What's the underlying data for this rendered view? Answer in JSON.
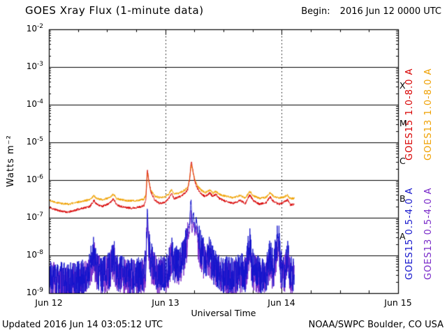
{
  "header": {
    "title": "GOES Xray Flux (1-minute data)",
    "begin_label": "Begin:",
    "begin_value": "2016 Jun 12 0000 UTC"
  },
  "axes": {
    "y_label": "Watts m⁻²",
    "x_label": "Universal Time"
  },
  "footer": {
    "updated": "Updated 2016 Jun 14 03:05:12 UTC",
    "credit": "NOAA/SWPC Boulder, CO USA"
  },
  "colors": {
    "background": "#ffffff",
    "frame": "#000000",
    "goes15_long": "#d80000",
    "goes13_long": "#efa000",
    "goes15_short": "#1414cc",
    "goes13_short": "#7828c8"
  },
  "chart_data": {
    "type": "line",
    "title": "GOES Xray Flux (1-minute data)",
    "xlabel": "Universal Time",
    "ylabel": "Watts m⁻²",
    "x_unit_hours_since": "2016 Jun 12 0000 UTC",
    "xlim_hours": [
      0,
      72
    ],
    "x_ticks": [
      {
        "hour": 0,
        "label": "Jun 12"
      },
      {
        "hour": 24,
        "label": "Jun 13"
      },
      {
        "hour": 48,
        "label": "Jun 14"
      },
      {
        "hour": 72,
        "label": "Jun 15"
      }
    ],
    "x_minor_tick_hours": 6,
    "y_scale": "log",
    "y_exp_top": -2,
    "y_exp_bottom": -9,
    "y_tick_exponents": [
      -2,
      -3,
      -4,
      -5,
      -6,
      -7,
      -8,
      -9
    ],
    "grid": {
      "h_lines_exponents": [
        -3,
        -4,
        -5,
        -6,
        -7,
        -8
      ],
      "v_dotted_hours": [
        24,
        48
      ]
    },
    "flare_classes": [
      {
        "label": "X",
        "exp_center": -3.5
      },
      {
        "label": "M",
        "exp_center": -4.5
      },
      {
        "label": "C",
        "exp_center": -5.5
      },
      {
        "label": "B",
        "exp_center": -6.5
      },
      {
        "label": "A",
        "exp_center": -7.5
      }
    ],
    "data_end_hour": 50.6,
    "legend_position": "right-rotated",
    "series": [
      {
        "name": "GOES15 1.0-8.0 A",
        "color": "#d80000",
        "band": "long",
        "seed": 11,
        "noise_decades": 0.03,
        "keypoints": [
          [
            0,
            1.9e-07
          ],
          [
            1,
            1.7e-07
          ],
          [
            2.5,
            1.5e-07
          ],
          [
            4,
            1.4e-07
          ],
          [
            5.5,
            1.6e-07
          ],
          [
            7,
            1.8e-07
          ],
          [
            8.5,
            2e-07
          ],
          [
            9.3,
            2.9e-07
          ],
          [
            9.8,
            2.3e-07
          ],
          [
            11,
            2e-07
          ],
          [
            12.5,
            2.4e-07
          ],
          [
            13.3,
            3.2e-07
          ],
          [
            14,
            2.2e-07
          ],
          [
            15.5,
            1.9e-07
          ],
          [
            17,
            1.8e-07
          ],
          [
            18.5,
            1.9e-07
          ],
          [
            19.6,
            2.1e-07
          ],
          [
            20.0,
            3e-07
          ],
          [
            20.3,
            2e-06
          ],
          [
            20.55,
            1.1e-06
          ],
          [
            21.0,
            5e-07
          ],
          [
            21.8,
            3e-07
          ],
          [
            22.8,
            2.4e-07
          ],
          [
            24.0,
            2.6e-07
          ],
          [
            24.8,
            3.4e-07
          ],
          [
            25.3,
            4.6e-07
          ],
          [
            25.8,
            3.2e-07
          ],
          [
            26.5,
            3.4e-07
          ],
          [
            27.3,
            3.8e-07
          ],
          [
            28.0,
            4.4e-07
          ],
          [
            28.6,
            5.5e-07
          ],
          [
            29.0,
            1e-06
          ],
          [
            29.35,
            3.2e-06
          ],
          [
            29.6,
            2.2e-06
          ],
          [
            30.0,
            1e-06
          ],
          [
            30.6,
            6e-07
          ],
          [
            31.4,
            4.4e-07
          ],
          [
            32.2,
            3.6e-07
          ],
          [
            33.2,
            4.6e-07
          ],
          [
            33.8,
            3.6e-07
          ],
          [
            34.4,
            4.2e-07
          ],
          [
            35.2,
            3.2e-07
          ],
          [
            36.5,
            2.7e-07
          ],
          [
            38,
            2.4e-07
          ],
          [
            39.5,
            2.9e-07
          ],
          [
            40.5,
            2.4e-07
          ],
          [
            41.4,
            4e-07
          ],
          [
            42.2,
            2.8e-07
          ],
          [
            43.5,
            2.3e-07
          ],
          [
            44.8,
            2.5e-07
          ],
          [
            45.6,
            3.6e-07
          ],
          [
            46.4,
            2.6e-07
          ],
          [
            47.5,
            2.3e-07
          ],
          [
            48.5,
            2.6e-07
          ],
          [
            49.2,
            3e-07
          ],
          [
            49.8,
            2.2e-07
          ],
          [
            50.6,
            2.3e-07
          ]
        ]
      },
      {
        "name": "GOES13 1.0-8.0 A",
        "color": "#efa000",
        "band": "long",
        "seed": 22,
        "noise_decades": 0.03,
        "keypoints": [
          [
            0,
            2.9e-07
          ],
          [
            1,
            2.7e-07
          ],
          [
            2.5,
            2.4e-07
          ],
          [
            4,
            2.3e-07
          ],
          [
            5.5,
            2.5e-07
          ],
          [
            7,
            2.8e-07
          ],
          [
            8.5,
            3e-07
          ],
          [
            9.3,
            3.9e-07
          ],
          [
            9.8,
            3.3e-07
          ],
          [
            11,
            3e-07
          ],
          [
            12.5,
            3.4e-07
          ],
          [
            13.3,
            4.2e-07
          ],
          [
            14,
            3.2e-07
          ],
          [
            15.5,
            2.9e-07
          ],
          [
            17,
            2.8e-07
          ],
          [
            18.5,
            2.9e-07
          ],
          [
            19.6,
            3.1e-07
          ],
          [
            20.0,
            4e-07
          ],
          [
            20.3,
            1.6e-06
          ],
          [
            20.55,
            1e-06
          ],
          [
            21.0,
            5.5e-07
          ],
          [
            21.8,
            3.8e-07
          ],
          [
            22.8,
            3.4e-07
          ],
          [
            24.0,
            3.6e-07
          ],
          [
            24.8,
            4.4e-07
          ],
          [
            25.3,
            5.6e-07
          ],
          [
            25.8,
            4.2e-07
          ],
          [
            26.5,
            4.4e-07
          ],
          [
            27.3,
            4.8e-07
          ],
          [
            28.0,
            5.4e-07
          ],
          [
            28.6,
            6.5e-07
          ],
          [
            29.0,
            1.1e-06
          ],
          [
            29.35,
            2.6e-06
          ],
          [
            29.6,
            1.9e-06
          ],
          [
            30.0,
            1.1e-06
          ],
          [
            30.6,
            7e-07
          ],
          [
            31.4,
            5.4e-07
          ],
          [
            32.2,
            4.6e-07
          ],
          [
            33.2,
            5.4e-07
          ],
          [
            33.8,
            4.6e-07
          ],
          [
            34.4,
            5e-07
          ],
          [
            35.2,
            4.2e-07
          ],
          [
            36.5,
            3.7e-07
          ],
          [
            38,
            3.4e-07
          ],
          [
            39.5,
            3.9e-07
          ],
          [
            40.5,
            3.4e-07
          ],
          [
            41.4,
            5e-07
          ],
          [
            42.2,
            3.8e-07
          ],
          [
            43.5,
            3.3e-07
          ],
          [
            44.8,
            3.5e-07
          ],
          [
            45.6,
            4.6e-07
          ],
          [
            46.4,
            3.6e-07
          ],
          [
            47.5,
            3.3e-07
          ],
          [
            48.5,
            3.6e-07
          ],
          [
            49.2,
            4e-07
          ],
          [
            49.8,
            3.2e-07
          ],
          [
            50.6,
            3.3e-07
          ]
        ]
      },
      {
        "name": "GOES15 0.5-4.0 A",
        "color": "#1414cc",
        "band": "short",
        "seed": 33,
        "noise_decades": 0.5,
        "noise_decades_high": 0.1,
        "noise_threshold": 2.5e-08,
        "keypoints": [
          [
            0,
            2.5e-09
          ],
          [
            2,
            2.2e-09
          ],
          [
            4,
            2e-09
          ],
          [
            6,
            2.3e-09
          ],
          [
            8,
            2.6e-09
          ],
          [
            9.3,
            1.6e-08
          ],
          [
            9.8,
            4e-09
          ],
          [
            11,
            3e-09
          ],
          [
            12.5,
            4e-09
          ],
          [
            13.3,
            1.1e-08
          ],
          [
            14,
            3.5e-09
          ],
          [
            16,
            2.8e-09
          ],
          [
            18,
            2.8e-09
          ],
          [
            19.7,
            3.2e-09
          ],
          [
            20.05,
            8e-09
          ],
          [
            20.3,
            1.9e-07
          ],
          [
            20.5,
            3e-08
          ],
          [
            21.0,
            8e-09
          ],
          [
            21.8,
            4e-09
          ],
          [
            23,
            3e-09
          ],
          [
            24.5,
            4e-09
          ],
          [
            25.3,
            1.1e-08
          ],
          [
            25.8,
            5e-09
          ],
          [
            26.5,
            6e-09
          ],
          [
            27.3,
            8e-09
          ],
          [
            28.0,
            1.4e-08
          ],
          [
            28.6,
            4e-08
          ],
          [
            29.0,
            8e-08
          ],
          [
            29.3,
            2.9e-07
          ],
          [
            29.5,
            7e-08
          ],
          [
            29.8,
            1.3e-07
          ],
          [
            30.1,
            5e-08
          ],
          [
            30.4,
            9e-08
          ],
          [
            30.8,
            3e-08
          ],
          [
            31.4,
            1.4e-08
          ],
          [
            32.2,
            8e-09
          ],
          [
            33.2,
            1.2e-08
          ],
          [
            34,
            5e-09
          ],
          [
            35.2,
            3.5e-09
          ],
          [
            36.5,
            3e-09
          ],
          [
            38,
            2.8e-09
          ],
          [
            39.5,
            4e-09
          ],
          [
            40.5,
            3e-09
          ],
          [
            41.4,
            2.4e-08
          ],
          [
            41.9,
            5e-09
          ],
          [
            43.5,
            2.8e-09
          ],
          [
            44.8,
            3.2e-09
          ],
          [
            45.6,
            9e-09
          ],
          [
            46.3,
            4e-09
          ],
          [
            47.3,
            3.8e-08
          ],
          [
            47.7,
            6e-09
          ],
          [
            48.5,
            3e-09
          ],
          [
            49.2,
            1.2e-08
          ],
          [
            49.8,
            3e-09
          ],
          [
            50.6,
            3e-09
          ]
        ]
      },
      {
        "name": "GOES13 0.5-4.0 A",
        "color": "#7828c8",
        "band": "short",
        "seed": 44,
        "noise_decades": 0.5,
        "noise_decades_high": 0.1,
        "noise_threshold": 2.5e-08,
        "keypoints": [
          [
            0,
            2.2e-09
          ],
          [
            2,
            2e-09
          ],
          [
            4,
            1.9e-09
          ],
          [
            6,
            2.1e-09
          ],
          [
            8,
            2.4e-09
          ],
          [
            9.3,
            9e-09
          ],
          [
            9.8,
            3.5e-09
          ],
          [
            11,
            2.8e-09
          ],
          [
            12.5,
            3.5e-09
          ],
          [
            13.3,
            7e-09
          ],
          [
            14,
            3e-09
          ],
          [
            16,
            2.5e-09
          ],
          [
            18,
            2.5e-09
          ],
          [
            19.7,
            2.8e-09
          ],
          [
            20.05,
            6e-09
          ],
          [
            20.3,
            1e-07
          ],
          [
            20.5,
            2e-08
          ],
          [
            21.0,
            6e-09
          ],
          [
            21.8,
            3.5e-09
          ],
          [
            23,
            2.8e-09
          ],
          [
            24.5,
            3.5e-09
          ],
          [
            25.3,
            8e-09
          ],
          [
            25.8,
            4.5e-09
          ],
          [
            26.5,
            5e-09
          ],
          [
            27.3,
            6e-09
          ],
          [
            28.0,
            1e-08
          ],
          [
            28.6,
            2.5e-08
          ],
          [
            29.0,
            5e-08
          ],
          [
            29.3,
            1.6e-07
          ],
          [
            29.5,
            4.5e-08
          ],
          [
            29.8,
            8e-08
          ],
          [
            30.1,
            3.5e-08
          ],
          [
            30.4,
            5.5e-08
          ],
          [
            30.8,
            2e-08
          ],
          [
            31.4,
            1e-08
          ],
          [
            32.2,
            6e-09
          ],
          [
            33.2,
            8e-09
          ],
          [
            34,
            4e-09
          ],
          [
            35.2,
            3e-09
          ],
          [
            36.5,
            2.6e-09
          ],
          [
            38,
            2.4e-09
          ],
          [
            39.5,
            3.2e-09
          ],
          [
            40.5,
            2.6e-09
          ],
          [
            41.4,
            1.4e-08
          ],
          [
            41.9,
            4e-09
          ],
          [
            43.5,
            2.4e-09
          ],
          [
            44.8,
            2.8e-09
          ],
          [
            45.6,
            6e-09
          ],
          [
            46.3,
            3.2e-09
          ],
          [
            47.3,
            2.2e-08
          ],
          [
            47.7,
            4.5e-09
          ],
          [
            48.5,
            2.6e-09
          ],
          [
            49.2,
            8e-09
          ],
          [
            49.8,
            2.6e-09
          ],
          [
            50.6,
            2.6e-09
          ]
        ]
      }
    ]
  }
}
